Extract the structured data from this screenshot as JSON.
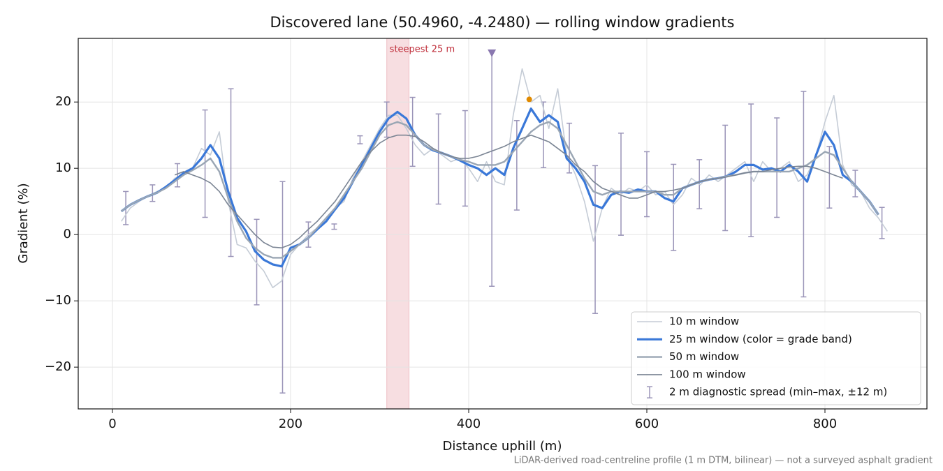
{
  "chart_data": {
    "type": "line",
    "title": "Discovered lane (50.4960, -4.2480) — rolling window gradients",
    "xlabel": "Distance uphill (m)",
    "ylabel": "Gradient (%)",
    "footnote": "LiDAR-derived road-centreline profile (1 m DTM, bilinear) — not a surveyed asphalt gradient",
    "xlim": [
      -38.4,
      914.5
    ],
    "ylim": [
      -26.3,
      29.6
    ],
    "xticks": [
      0,
      200,
      400,
      600,
      800
    ],
    "yticks": [
      {
        "value": -20,
        "label": "−20"
      },
      {
        "value": -10,
        "label": "−10"
      },
      0,
      10,
      20
    ],
    "grid": true,
    "legend": "lower right",
    "x": [
      10,
      20,
      30,
      40,
      50,
      60,
      70,
      80,
      90,
      100,
      110,
      120,
      130,
      140,
      150,
      160,
      170,
      180,
      190,
      200,
      210,
      220,
      230,
      240,
      250,
      260,
      270,
      280,
      290,
      300,
      310,
      320,
      330,
      340,
      350,
      360,
      370,
      380,
      390,
      400,
      410,
      420,
      430,
      440,
      450,
      460,
      470,
      480,
      490,
      500,
      510,
      520,
      530,
      540,
      550,
      560,
      570,
      580,
      590,
      600,
      610,
      620,
      630,
      640,
      650,
      660,
      670,
      680,
      690,
      700,
      710,
      720,
      730,
      740,
      750,
      760,
      770,
      780,
      790,
      800,
      810,
      820,
      830,
      840,
      850,
      860,
      870
    ],
    "series": [
      {
        "name": "10 m window",
        "color": "#c5ccd6",
        "values": [
          2.0,
          4.0,
          5.0,
          5.8,
          6.5,
          7.0,
          8.5,
          9.0,
          10.0,
          13.0,
          12.0,
          15.5,
          5.0,
          -1.5,
          -2.0,
          -4.0,
          -5.5,
          -8.0,
          -7.0,
          -3.0,
          -1.5,
          0.0,
          1.0,
          2.0,
          4.0,
          5.0,
          8.5,
          11.0,
          13.5,
          16.0,
          18.0,
          18.0,
          16.0,
          13.5,
          12.0,
          13.0,
          12.0,
          11.0,
          11.5,
          10.0,
          8.0,
          11.0,
          8.0,
          7.5,
          18.0,
          25.0,
          20.0,
          21.0,
          16.0,
          22.0,
          12.0,
          9.0,
          5.0,
          -1.0,
          4.0,
          7.0,
          6.0,
          7.0,
          6.5,
          7.5,
          6.0,
          6.5,
          4.5,
          6.0,
          8.5,
          7.5,
          9.0,
          8.0,
          9.0,
          10.0,
          11.0,
          8.0,
          11.0,
          9.5,
          10.0,
          11.0,
          8.0,
          9.0,
          12.0,
          17.0,
          21.0,
          10.5,
          7.5,
          6.5,
          4.0,
          2.5,
          0.5
        ]
      },
      {
        "name": "25 m window (color = grade band)",
        "color": "#3a78d8",
        "values": [
          3.5,
          4.5,
          5.2,
          5.8,
          6.3,
          7.2,
          8.2,
          9.3,
          10.0,
          11.5,
          13.5,
          11.5,
          6.5,
          2.5,
          0.5,
          -2.5,
          -3.8,
          -4.5,
          -4.8,
          -2.0,
          -1.5,
          -0.5,
          0.8,
          2.0,
          3.8,
          5.5,
          8.0,
          10.5,
          13.0,
          15.5,
          17.5,
          18.5,
          17.5,
          15.0,
          13.5,
          12.7,
          12.3,
          11.8,
          11.2,
          10.5,
          10.0,
          9.0,
          10.0,
          9.0,
          13.0,
          16.0,
          19.0,
          17.0,
          18.0,
          17.0,
          11.5,
          10.0,
          8.0,
          4.5,
          4.0,
          6.0,
          6.5,
          6.3,
          6.8,
          6.5,
          6.5,
          5.5,
          5.0,
          7.0,
          7.5,
          8.0,
          8.3,
          8.5,
          8.8,
          9.5,
          10.5,
          10.5,
          9.8,
          10.0,
          9.5,
          10.5,
          9.5,
          8.0,
          12.0,
          15.5,
          13.5,
          9.0,
          8.0,
          6.5,
          5.0,
          3.0,
          null
        ]
      },
      {
        "name": "50 m window",
        "color": "#9aa6b4",
        "values": [
          3.5,
          4.5,
          5.2,
          5.8,
          6.3,
          7.0,
          8.0,
          9.0,
          9.7,
          10.5,
          11.5,
          9.5,
          5.5,
          2.0,
          -0.5,
          -2.0,
          -3.0,
          -3.5,
          -3.5,
          -2.5,
          -1.5,
          -0.5,
          1.0,
          2.5,
          4.0,
          6.0,
          8.0,
          10.0,
          12.5,
          15.0,
          16.5,
          17.0,
          16.5,
          15.0,
          13.5,
          12.8,
          12.3,
          11.8,
          11.3,
          11.0,
          10.5,
          10.5,
          10.5,
          11.0,
          12.5,
          14.0,
          15.5,
          16.5,
          17.0,
          16.0,
          13.5,
          11.0,
          8.5,
          6.5,
          6.0,
          6.5,
          6.5,
          6.5,
          6.5,
          6.5,
          6.5,
          6.0,
          6.0,
          7.0,
          7.5,
          8.0,
          8.3,
          8.5,
          8.8,
          9.0,
          9.3,
          9.5,
          9.5,
          9.5,
          9.5,
          9.5,
          10.0,
          10.5,
          11.5,
          12.5,
          12.0,
          10.0,
          8.0,
          6.5,
          5.0,
          3.0,
          null
        ]
      },
      {
        "name": "100 m window",
        "color": "#7b8594",
        "values": [
          null,
          null,
          null,
          null,
          null,
          null,
          9.0,
          9.5,
          9.0,
          8.5,
          7.8,
          6.5,
          4.5,
          3.0,
          1.5,
          0.0,
          -1.2,
          -1.9,
          -2.0,
          -1.5,
          -0.5,
          0.8,
          2.0,
          3.5,
          5.0,
          7.0,
          9.0,
          11.0,
          12.5,
          13.8,
          14.6,
          15.0,
          15.0,
          14.8,
          14.0,
          13.0,
          12.3,
          11.8,
          11.5,
          11.5,
          11.8,
          12.3,
          12.8,
          13.3,
          14.0,
          14.5,
          15.0,
          14.5,
          14.0,
          13.0,
          12.0,
          10.5,
          9.5,
          8.0,
          7.0,
          6.5,
          6.0,
          5.5,
          5.5,
          6.0,
          6.5,
          6.5,
          6.7,
          7.0,
          7.5,
          8.0,
          8.3,
          8.5,
          8.7,
          9.0,
          9.3,
          9.5,
          9.5,
          9.8,
          10.0,
          10.2,
          10.3,
          10.3,
          10.0,
          9.5,
          9.0,
          8.5,
          null,
          null,
          null,
          null,
          null
        ]
      }
    ],
    "errorbars": {
      "name": "2 m diagnostic spread (min–max, ±12 m)",
      "color": "#9a94b8",
      "x": [
        15,
        45,
        73,
        104,
        133,
        162,
        191,
        220,
        249,
        278,
        308,
        337,
        366,
        396,
        426,
        454,
        484,
        513,
        542,
        571,
        600,
        630,
        659,
        688,
        717,
        746,
        776,
        805,
        834,
        864
      ],
      "low": [
        1.5,
        5.0,
        7.2,
        2.6,
        -3.3,
        -10.6,
        -23.9,
        -1.9,
        0.8,
        13.7,
        14.7,
        10.3,
        4.6,
        4.3,
        -7.8,
        3.7,
        10.1,
        9.3,
        -11.9,
        -0.1,
        2.7,
        -2.4,
        3.9,
        0.6,
        -0.3,
        2.6,
        -9.4,
        4.0,
        5.7,
        -0.6
      ],
      "high": [
        6.5,
        7.5,
        10.7,
        18.8,
        22.0,
        2.3,
        8.0,
        1.9,
        1.6,
        14.9,
        20.0,
        20.7,
        18.2,
        18.7,
        27.6,
        17.2,
        20.0,
        16.8,
        10.4,
        15.3,
        12.5,
        10.6,
        11.3,
        16.5,
        19.7,
        17.6,
        21.6,
        13.3,
        9.7,
        4.1
      ]
    },
    "highlight": {
      "x0": 308,
      "x1": 333,
      "label": "steepest 25 m",
      "color": "#e8a0a8"
    },
    "markers": [
      {
        "x": 426,
        "y": 27.4,
        "color": "#8a78b0",
        "shape": "triangle"
      },
      {
        "x": 468,
        "y": 20.4,
        "color": "#e08a00",
        "shape": "dot"
      }
    ]
  }
}
